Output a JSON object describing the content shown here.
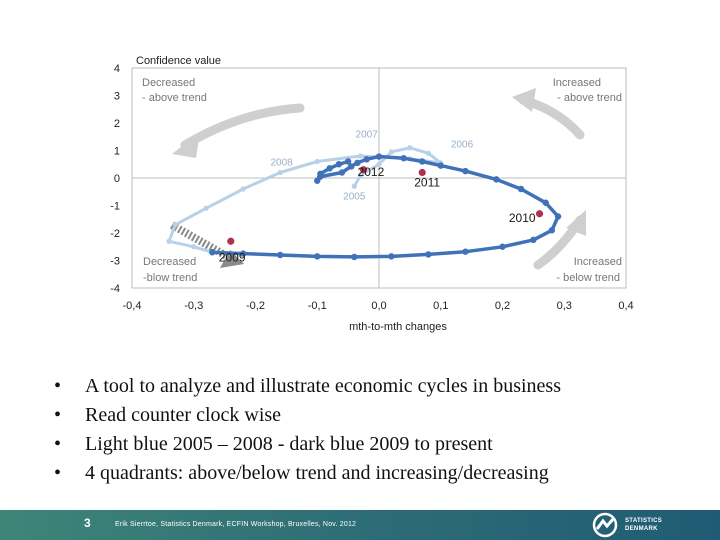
{
  "chart_data": {
    "type": "line",
    "title": "Confidence value",
    "xlabel": "mth-to-mth  changes",
    "ylabel": "Confidence value",
    "xlim": [
      -0.4,
      0.4
    ],
    "ylim": [
      -4,
      4
    ],
    "x_ticks": [
      "-0,4",
      "-0,3",
      "-0,2",
      "-0,1",
      "0,0",
      "0,1",
      "0,2",
      "0,3",
      "0,4"
    ],
    "y_ticks": [
      "4",
      "3",
      "2",
      "1",
      "0",
      "-1",
      "-2",
      "-3",
      "-4"
    ],
    "quadrants": [
      {
        "line1": "Decreased",
        "line2": "- above trend",
        "position": "top-left"
      },
      {
        "line1": "Increased",
        "line2": "- above trend",
        "position": "top-right"
      },
      {
        "line1": "Decreased",
        "line2": "-blow trend",
        "position": "bottom-left"
      },
      {
        "line1": "Increased",
        "line2": "- below trend",
        "position": "bottom-right"
      }
    ],
    "series": [
      {
        "color": "#b8d0e8",
        "points": [
          [
            -0.04,
            -0.3
          ],
          [
            -0.03,
            0.1
          ],
          [
            0.0,
            0.5
          ],
          [
            0.02,
            0.95
          ],
          [
            0.05,
            1.1
          ],
          [
            0.08,
            0.9
          ],
          [
            0.1,
            0.55
          ],
          [
            0.05,
            0.7
          ],
          [
            -0.03,
            0.8
          ],
          [
            -0.1,
            0.6
          ],
          [
            -0.16,
            0.2
          ],
          [
            -0.22,
            -0.4
          ],
          [
            -0.28,
            -1.1
          ],
          [
            -0.33,
            -1.7
          ],
          [
            -0.34,
            -2.3
          ],
          [
            -0.3,
            -2.5
          ],
          [
            -0.27,
            -2.7
          ]
        ]
      },
      {
        "color": "#3f72b8",
        "points": [
          [
            -0.27,
            -2.7
          ],
          [
            -0.22,
            -2.75
          ],
          [
            -0.16,
            -2.8
          ],
          [
            -0.1,
            -2.85
          ],
          [
            -0.04,
            -2.87
          ],
          [
            0.02,
            -2.85
          ],
          [
            0.08,
            -2.78
          ],
          [
            0.14,
            -2.68
          ],
          [
            0.2,
            -2.5
          ],
          [
            0.25,
            -2.25
          ],
          [
            0.28,
            -1.9
          ],
          [
            0.29,
            -1.4
          ],
          [
            0.27,
            -0.9
          ],
          [
            0.23,
            -0.4
          ],
          [
            0.19,
            -0.05
          ],
          [
            0.14,
            0.25
          ],
          [
            0.1,
            0.45
          ],
          [
            0.07,
            0.6
          ],
          [
            0.04,
            0.72
          ],
          [
            0.0,
            0.78
          ],
          [
            -0.02,
            0.68
          ],
          [
            -0.035,
            0.55
          ],
          [
            -0.045,
            0.42
          ],
          [
            -0.06,
            0.2
          ],
          [
            -0.095,
            0.05
          ],
          [
            -0.1,
            -0.1
          ],
          [
            -0.095,
            0.15
          ],
          [
            -0.08,
            0.35
          ],
          [
            -0.065,
            0.5
          ],
          [
            -0.05,
            0.6
          ]
        ]
      }
    ],
    "year_labels": [
      {
        "text": "2005",
        "x": -0.04,
        "y": -0.3,
        "label_color": "#9ab0c8",
        "marker": false
      },
      {
        "text": "2006",
        "x": 0.11,
        "y": 0.9,
        "label_color": "#9ab0c8",
        "marker": false
      },
      {
        "text": "2007",
        "x": -0.02,
        "y": 1.4,
        "label_color": "#9ab0c8",
        "marker": false
      },
      {
        "text": "2008",
        "x": -0.13,
        "y": 0.6,
        "label_color": "#9ab0c8",
        "marker": false
      },
      {
        "text": "2009",
        "x": -0.24,
        "y": -2.3,
        "label_color": "#1a1a1a",
        "marker": true
      },
      {
        "text": "2010",
        "x": 0.26,
        "y": -1.3,
        "label_color": "#1a1a1a",
        "marker": true
      },
      {
        "text": "2011",
        "x": 0.07,
        "y": 0.2,
        "label_color": "#1a1a1a",
        "marker": true
      },
      {
        "text": "2012",
        "x": -0.025,
        "y": 0.3,
        "label_color": "#1a1a1a",
        "marker": true
      }
    ]
  },
  "bullets": [
    "A tool to analyze and illustrate economic cycles in business",
    "Read counter clock wise",
    "Light blue 2005 – 2008  - dark blue 2009 to present",
    "4 quadrants: above/below trend and increasing/decreasing"
  ],
  "bullet_symbol": "•",
  "footer": {
    "page_number": "3",
    "credit": "Erik Sierrtoe, Statistics Denmark, ECFIN Workshop, Bruxelles, Nov. 2012",
    "logo_line1": "STATISTICS",
    "logo_line2": "DENMARK"
  }
}
